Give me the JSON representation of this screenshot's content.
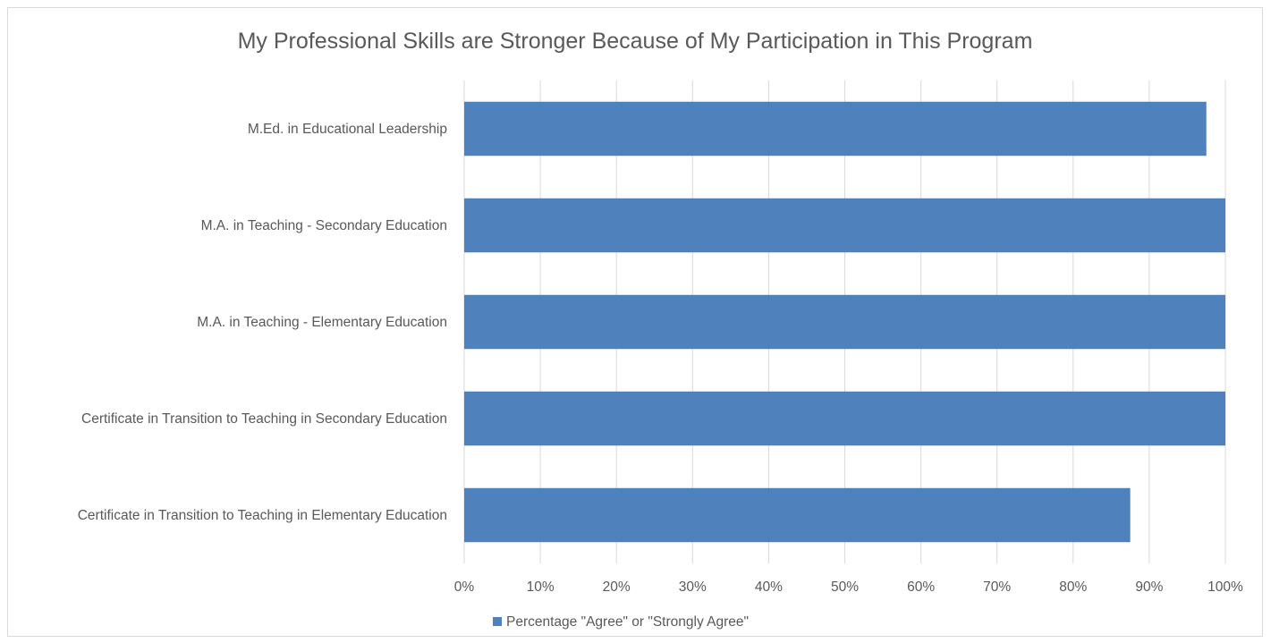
{
  "chart_data": {
    "type": "bar",
    "orientation": "horizontal",
    "title": "My Professional Skills are Stronger Because of My Participation in This Program",
    "categories": [
      "M.Ed. in Educational Leadership",
      "M.A. in Teaching - Secondary Education",
      "M.A. in Teaching - Elementary Education",
      "Certificate in Transition to Teaching in Secondary Education",
      "Certificate in Transition to Teaching in Elementary Education"
    ],
    "series": [
      {
        "name": "Percentage \"Agree\" or \"Strongly Agree\"",
        "values": [
          97.5,
          100,
          100,
          100,
          87.5
        ],
        "color": "#4f81bd"
      }
    ],
    "xlim": [
      0,
      100
    ],
    "xticks": [
      "0%",
      "10%",
      "20%",
      "30%",
      "40%",
      "50%",
      "60%",
      "70%",
      "80%",
      "90%",
      "100%"
    ],
    "grid": true,
    "legend_position": "bottom"
  }
}
